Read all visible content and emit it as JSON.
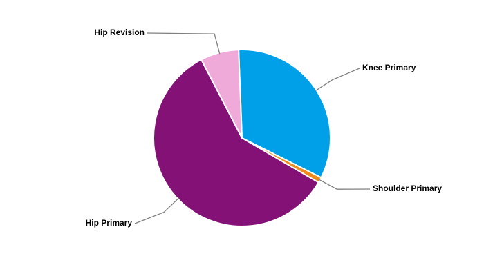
{
  "chart_data": {
    "type": "pie",
    "categories": [
      "Knee Primary",
      "Shoulder Primary",
      "Hip Primary",
      "Hip Revision"
    ],
    "values": [
      33,
      1,
      59,
      7
    ],
    "colors": [
      "#00a0e9",
      "#f08a1c",
      "#841176",
      "#f0aad9"
    ]
  }
}
